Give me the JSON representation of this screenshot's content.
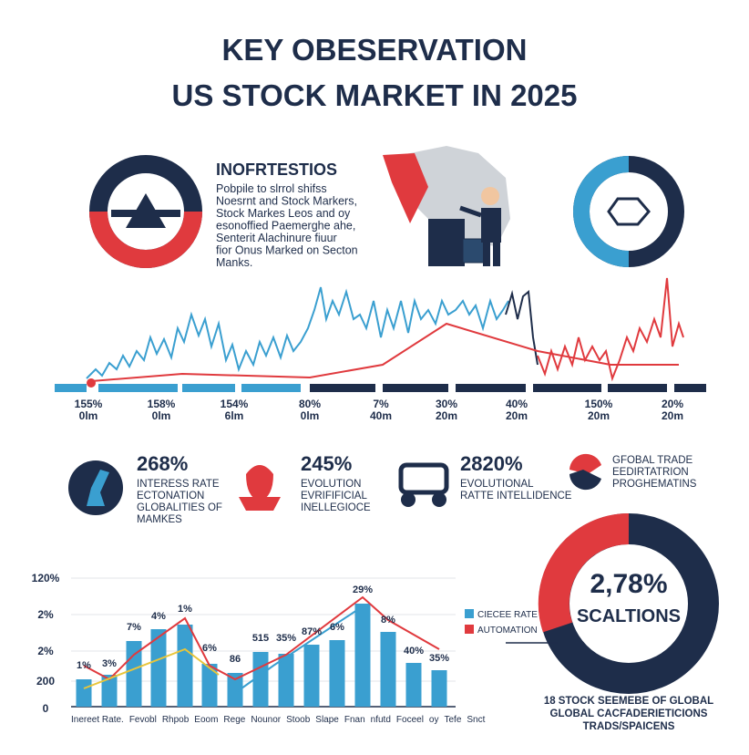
{
  "header": {
    "title": [
      "KEY OBESERVATION",
      "US STOCK MARKET IN 2025"
    ]
  },
  "intro": {
    "heading": "INOFRTESTIOS",
    "lines": [
      "Pobpile to slrrol shifss",
      "Noesrnt and Stock Markers,",
      "Stock Markes Leos and oy",
      "esonoffied Paemerghe ahe,",
      "Senterit Alachinure fiuur",
      "fior Onus Marked on Secton",
      "Manks."
    ]
  },
  "timeline": {
    "labels": [
      [
        "155%",
        "0lm"
      ],
      [
        "158%",
        "0lm"
      ],
      [
        "154%",
        "6lm"
      ],
      [
        "80%",
        "0lm"
      ],
      [
        "7%",
        "40m"
      ],
      [
        "30%",
        "20m"
      ],
      [
        "40%",
        "20m"
      ],
      [
        "150%",
        "20m"
      ],
      [
        "20%",
        "20m"
      ]
    ]
  },
  "stats": [
    {
      "value": "268%",
      "lines": [
        "INTERESS RATE",
        "ECTONATION",
        "GLOBALITIES OF",
        "MAMKES"
      ]
    },
    {
      "value": "245%",
      "lines": [
        "EVOLUTION",
        "EVRIFIFICIAL",
        "INELLEGIOCE"
      ]
    },
    {
      "value": "2820%",
      "lines": [
        "EVOLUTIONAL",
        "RATTE INTELLIDENCE"
      ]
    },
    {
      "value": "",
      "lines": [
        "GFOBAL TRADE",
        "EEDIRTATRION",
        "PROGHEMATINS"
      ]
    }
  ],
  "bar_panel": {
    "yticks": [
      "120%",
      "2%",
      "2%",
      "200",
      "0"
    ],
    "bar_labels": [
      "1%",
      "3%",
      "7%",
      "4%",
      "1%",
      "6%",
      "86",
      "515",
      "35%",
      "87%",
      "6%",
      "29%",
      "8%",
      "40%",
      "35%"
    ],
    "x_labels": [
      "Inereet Rate.",
      "Fevobl",
      "Rhpob",
      "Eoom",
      "Rege",
      "Nounor",
      "Stoob",
      "Slape",
      "Fnan",
      "nfutd",
      "Foceel",
      "oy",
      "Tefe",
      "Snct"
    ],
    "legend": [
      "CIECEE RATE",
      "AUTOMATION"
    ]
  },
  "donut": {
    "value": "2,78%",
    "label": "SCALTIONS",
    "caption": [
      "18 STOCK SEEMEBE OF GLOBAL",
      "GLOBAL CACFADERIETICIONS",
      "TRADS/SPAICENS"
    ]
  }
}
